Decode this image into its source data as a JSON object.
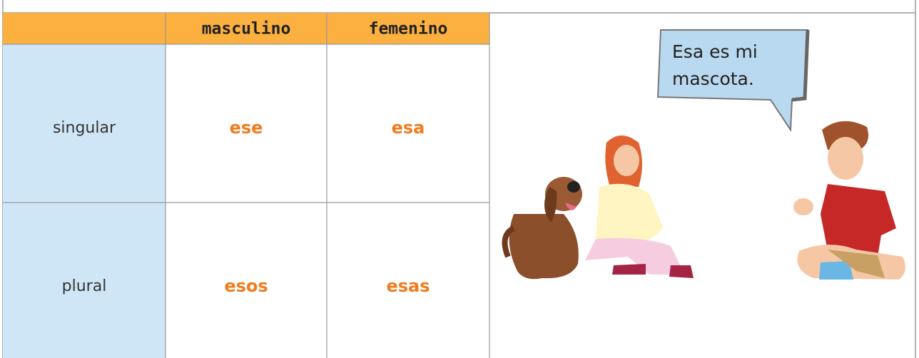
{
  "table": {
    "header": [
      "masculino",
      "femenino"
    ],
    "rows": [
      {
        "label": "singular",
        "cells": [
          "ese",
          "esa"
        ]
      },
      {
        "label": "plural",
        "cells": [
          "esos",
          "esas"
        ]
      }
    ]
  },
  "speech_bubble": {
    "lines": [
      "Esa es mi",
      "mascota."
    ]
  }
}
